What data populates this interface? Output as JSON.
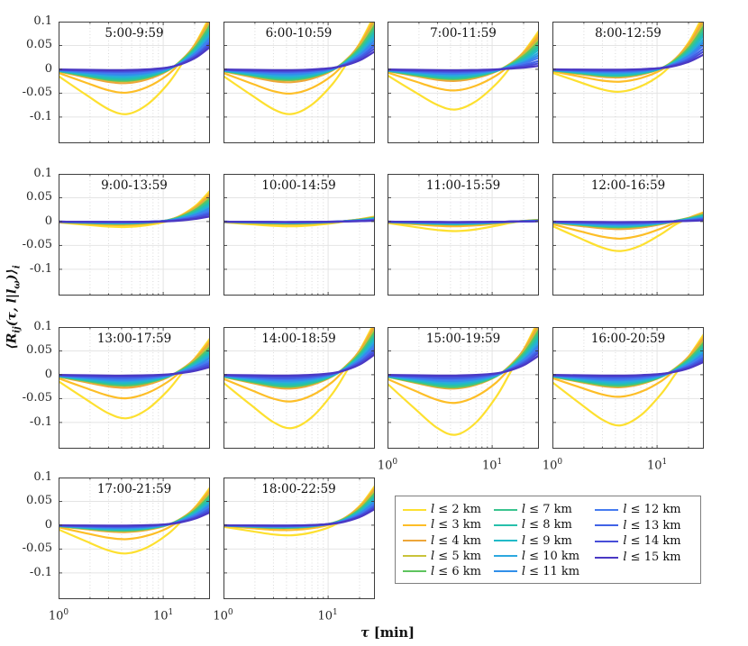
{
  "chart_data": {
    "type": "line",
    "xscale": "log",
    "xlabel": "τ [min]",
    "xlabel_parts": {
      "tau": "τ",
      "unit": " [min]"
    },
    "ylabel": "⟨Rij(τ, l|lω)⟩i",
    "ylabel_parts": {
      "pre": "⟨R",
      "sub1": "ij",
      "mid": "(τ, l|l",
      "sub2": "ω",
      "post": ")⟩",
      "sub3": "i"
    },
    "xlim": [
      1,
      28
    ],
    "ylim": [
      -0.155,
      0.1
    ],
    "yticks": [
      0.1,
      0.05,
      0,
      -0.05,
      -0.1
    ],
    "ytick_labels": [
      "0.1",
      "0.05",
      "0",
      "-0.05",
      "-0.1"
    ],
    "xtick_values": [
      1,
      10
    ],
    "xtick_labels": [
      {
        "base": "10",
        "exp": "0"
      },
      {
        "base": "10",
        "exp": "1"
      }
    ],
    "minor_xticks": [
      2,
      3,
      4,
      5,
      6,
      7,
      8,
      9,
      20
    ],
    "grid": true,
    "legend_position": "bottom-right",
    "x_points": [
      1,
      1.8,
      3,
      4.5,
      7,
      11,
      15,
      21,
      30
    ],
    "dip_weights": [
      0.15,
      0.55,
      0.88,
      1,
      0.82,
      0.45,
      0.18,
      0.03,
      0
    ],
    "end_weights": [
      0,
      0,
      0,
      0.01,
      0.03,
      0.09,
      0.22,
      0.5,
      1
    ],
    "shape_note": "y(x_i) = dip*dip_weights[i] + end*end_weights[i]; dip = minimum around τ≈4.5 min, end = value at τ≈30 min",
    "series": [
      {
        "label": "l ≤ 2 km",
        "color": "#FDE030"
      },
      {
        "label": "l ≤ 3 km",
        "color": "#FDBE27"
      },
      {
        "label": "l ≤ 4 km",
        "color": "#EDA63A"
      },
      {
        "label": "l ≤ 5 km",
        "color": "#C9C33A"
      },
      {
        "label": "l ≤ 6 km",
        "color": "#5EC45E"
      },
      {
        "label": "l ≤ 7 km",
        "color": "#3AC48F"
      },
      {
        "label": "l ≤ 8 km",
        "color": "#27C0AB"
      },
      {
        "label": "l ≤ 9 km",
        "color": "#21BAC8"
      },
      {
        "label": "l ≤ 10 km",
        "color": "#2CA8DF"
      },
      {
        "label": "l ≤ 11 km",
        "color": "#318FE9"
      },
      {
        "label": "l ≤ 12 km",
        "color": "#467BF0"
      },
      {
        "label": "l ≤ 13 km",
        "color": "#4163E6"
      },
      {
        "label": "l ≤ 14 km",
        "color": "#474ED8"
      },
      {
        "label": "l ≤ 15 km",
        "color": "#4A38C4"
      }
    ],
    "panels": [
      {
        "title": "5:00-9:59",
        "row": 0,
        "col": 0,
        "y_ticks": true,
        "x_ticks": false,
        "dip": [
          -0.095,
          -0.05,
          -0.03,
          -0.026,
          -0.025,
          -0.023,
          -0.021,
          -0.018,
          -0.015,
          -0.012,
          -0.009,
          -0.006,
          -0.004,
          -0.002
        ],
        "end": [
          0.125,
          0.119,
          0.114,
          0.108,
          0.103,
          0.097,
          0.091,
          0.086,
          0.08,
          0.074,
          0.069,
          0.063,
          0.058,
          0.052
        ]
      },
      {
        "title": "6:00-10:59",
        "row": 0,
        "col": 1,
        "y_ticks": false,
        "x_ticks": false,
        "dip": [
          -0.095,
          -0.052,
          -0.028,
          -0.024,
          -0.023,
          -0.021,
          -0.019,
          -0.017,
          -0.014,
          -0.011,
          -0.008,
          -0.006,
          -0.004,
          -0.002
        ],
        "end": [
          0.13,
          0.123,
          0.116,
          0.11,
          0.103,
          0.096,
          0.089,
          0.083,
          0.076,
          0.069,
          0.062,
          0.056,
          0.049,
          0.042
        ]
      },
      {
        "title": "7:00-11:59",
        "row": 0,
        "col": 2,
        "y_ticks": false,
        "x_ticks": false,
        "dip": [
          -0.085,
          -0.045,
          -0.025,
          -0.022,
          -0.021,
          -0.019,
          -0.018,
          -0.015,
          -0.013,
          -0.01,
          -0.008,
          -0.006,
          -0.004,
          -0.002
        ],
        "end": [
          0.09,
          0.084,
          0.077,
          0.071,
          0.065,
          0.058,
          0.052,
          0.046,
          0.039,
          0.033,
          0.027,
          0.02,
          0.014,
          0.008
        ]
      },
      {
        "title": "8:00-12:59",
        "row": 0,
        "col": 3,
        "y_ticks": false,
        "x_ticks": false,
        "dip": [
          -0.048,
          -0.027,
          -0.018,
          -0.016,
          -0.015,
          -0.014,
          -0.013,
          -0.011,
          -0.009,
          -0.007,
          -0.005,
          -0.004,
          -0.002,
          -0.001
        ],
        "end": [
          0.13,
          0.123,
          0.115,
          0.108,
          0.101,
          0.093,
          0.086,
          0.079,
          0.071,
          0.064,
          0.057,
          0.049,
          0.042,
          0.035
        ]
      },
      {
        "title": "9:00-13:59",
        "row": 1,
        "col": 0,
        "y_ticks": true,
        "x_ticks": false,
        "dip": [
          -0.012,
          -0.008,
          -0.006,
          -0.005,
          -0.005,
          -0.004,
          -0.004,
          -0.003,
          -0.003,
          -0.002,
          -0.002,
          -0.001,
          -0.001,
          -0.001
        ],
        "end": [
          0.072,
          0.067,
          0.063,
          0.058,
          0.054,
          0.049,
          0.044,
          0.04,
          0.035,
          0.031,
          0.026,
          0.021,
          0.017,
          0.012
        ]
      },
      {
        "title": "10:00-14:59",
        "row": 1,
        "col": 1,
        "y_ticks": false,
        "x_ticks": false,
        "dip": [
          -0.01,
          -0.006,
          -0.005,
          -0.004,
          -0.004,
          -0.003,
          -0.003,
          -0.003,
          -0.002,
          -0.002,
          -0.002,
          -0.001,
          -0.001,
          -0.001
        ],
        "end": [
          0.012,
          0.011,
          0.01,
          0.01,
          0.009,
          0.008,
          0.007,
          0.007,
          0.006,
          0.005,
          0.004,
          0.004,
          0.003,
          0.002
        ]
      },
      {
        "title": "11:00-15:59",
        "row": 1,
        "col": 2,
        "y_ticks": false,
        "x_ticks": false,
        "dip": [
          -0.02,
          -0.01,
          -0.007,
          -0.006,
          -0.006,
          -0.005,
          -0.005,
          -0.004,
          -0.004,
          -0.003,
          -0.002,
          -0.002,
          -0.001,
          -0.001
        ],
        "end": [
          0.004,
          0.004,
          0.003,
          0.003,
          0.003,
          0.003,
          0.002,
          0.002,
          0.002,
          0.002,
          0.001,
          0.001,
          0.001,
          0.001
        ]
      },
      {
        "title": "12:00-16:59",
        "row": 1,
        "col": 3,
        "y_ticks": false,
        "x_ticks": false,
        "dip": [
          -0.062,
          -0.036,
          -0.016,
          -0.013,
          -0.012,
          -0.011,
          -0.01,
          -0.009,
          -0.008,
          -0.006,
          -0.005,
          -0.004,
          -0.002,
          -0.001
        ],
        "end": [
          0.022,
          0.021,
          0.019,
          0.018,
          0.016,
          0.015,
          0.013,
          0.012,
          0.01,
          0.009,
          0.007,
          0.006,
          0.004,
          0.003
        ]
      },
      {
        "title": "13:00-17:59",
        "row": 2,
        "col": 0,
        "y_ticks": true,
        "x_ticks": false,
        "dip": [
          -0.092,
          -0.05,
          -0.028,
          -0.024,
          -0.023,
          -0.021,
          -0.019,
          -0.017,
          -0.014,
          -0.012,
          -0.009,
          -0.007,
          -0.004,
          -0.002
        ],
        "end": [
          0.085,
          0.08,
          0.075,
          0.07,
          0.064,
          0.059,
          0.054,
          0.049,
          0.044,
          0.039,
          0.033,
          0.028,
          0.023,
          0.018
        ]
      },
      {
        "title": "14:00-18:59",
        "row": 2,
        "col": 1,
        "y_ticks": false,
        "x_ticks": false,
        "dip": [
          -0.113,
          -0.057,
          -0.03,
          -0.027,
          -0.026,
          -0.024,
          -0.022,
          -0.019,
          -0.016,
          -0.013,
          -0.01,
          -0.008,
          -0.005,
          -0.002
        ],
        "end": [
          0.125,
          0.119,
          0.113,
          0.107,
          0.101,
          0.095,
          0.09,
          0.084,
          0.078,
          0.072,
          0.066,
          0.06,
          0.054,
          0.048
        ]
      },
      {
        "title": "15:00-19:59",
        "row": 2,
        "col": 2,
        "y_ticks": false,
        "x_ticks": true,
        "dip": [
          -0.127,
          -0.06,
          -0.03,
          -0.028,
          -0.027,
          -0.025,
          -0.022,
          -0.02,
          -0.017,
          -0.014,
          -0.011,
          -0.008,
          -0.005,
          -0.002
        ],
        "end": [
          0.13,
          0.123,
          0.117,
          0.11,
          0.104,
          0.097,
          0.091,
          0.084,
          0.078,
          0.071,
          0.065,
          0.058,
          0.052,
          0.045
        ]
      },
      {
        "title": "16:00-20:59",
        "row": 2,
        "col": 3,
        "y_ticks": false,
        "x_ticks": true,
        "dip": [
          -0.107,
          -0.047,
          -0.027,
          -0.025,
          -0.024,
          -0.022,
          -0.02,
          -0.018,
          -0.015,
          -0.012,
          -0.01,
          -0.007,
          -0.004,
          -0.002
        ],
        "end": [
          0.095,
          0.09,
          0.085,
          0.08,
          0.075,
          0.07,
          0.065,
          0.06,
          0.055,
          0.05,
          0.045,
          0.04,
          0.035,
          0.03
        ]
      },
      {
        "title": "17:00-21:59",
        "row": 3,
        "col": 0,
        "y_ticks": true,
        "x_ticks": true,
        "dip": [
          -0.06,
          -0.03,
          -0.015,
          -0.013,
          -0.012,
          -0.011,
          -0.01,
          -0.009,
          -0.008,
          -0.006,
          -0.005,
          -0.004,
          -0.002,
          -0.001
        ],
        "end": [
          0.088,
          0.084,
          0.079,
          0.075,
          0.07,
          0.066,
          0.061,
          0.057,
          0.052,
          0.048,
          0.043,
          0.039,
          0.034,
          0.03
        ]
      },
      {
        "title": "18:00-22:59",
        "row": 3,
        "col": 1,
        "y_ticks": false,
        "x_ticks": true,
        "dip": [
          -0.022,
          -0.011,
          -0.007,
          -0.006,
          -0.006,
          -0.005,
          -0.005,
          -0.004,
          -0.004,
          -0.003,
          -0.003,
          -0.002,
          -0.001,
          -0.001
        ],
        "end": [
          0.092,
          0.088,
          0.084,
          0.08,
          0.075,
          0.071,
          0.067,
          0.063,
          0.059,
          0.055,
          0.05,
          0.046,
          0.042,
          0.038
        ]
      }
    ]
  }
}
